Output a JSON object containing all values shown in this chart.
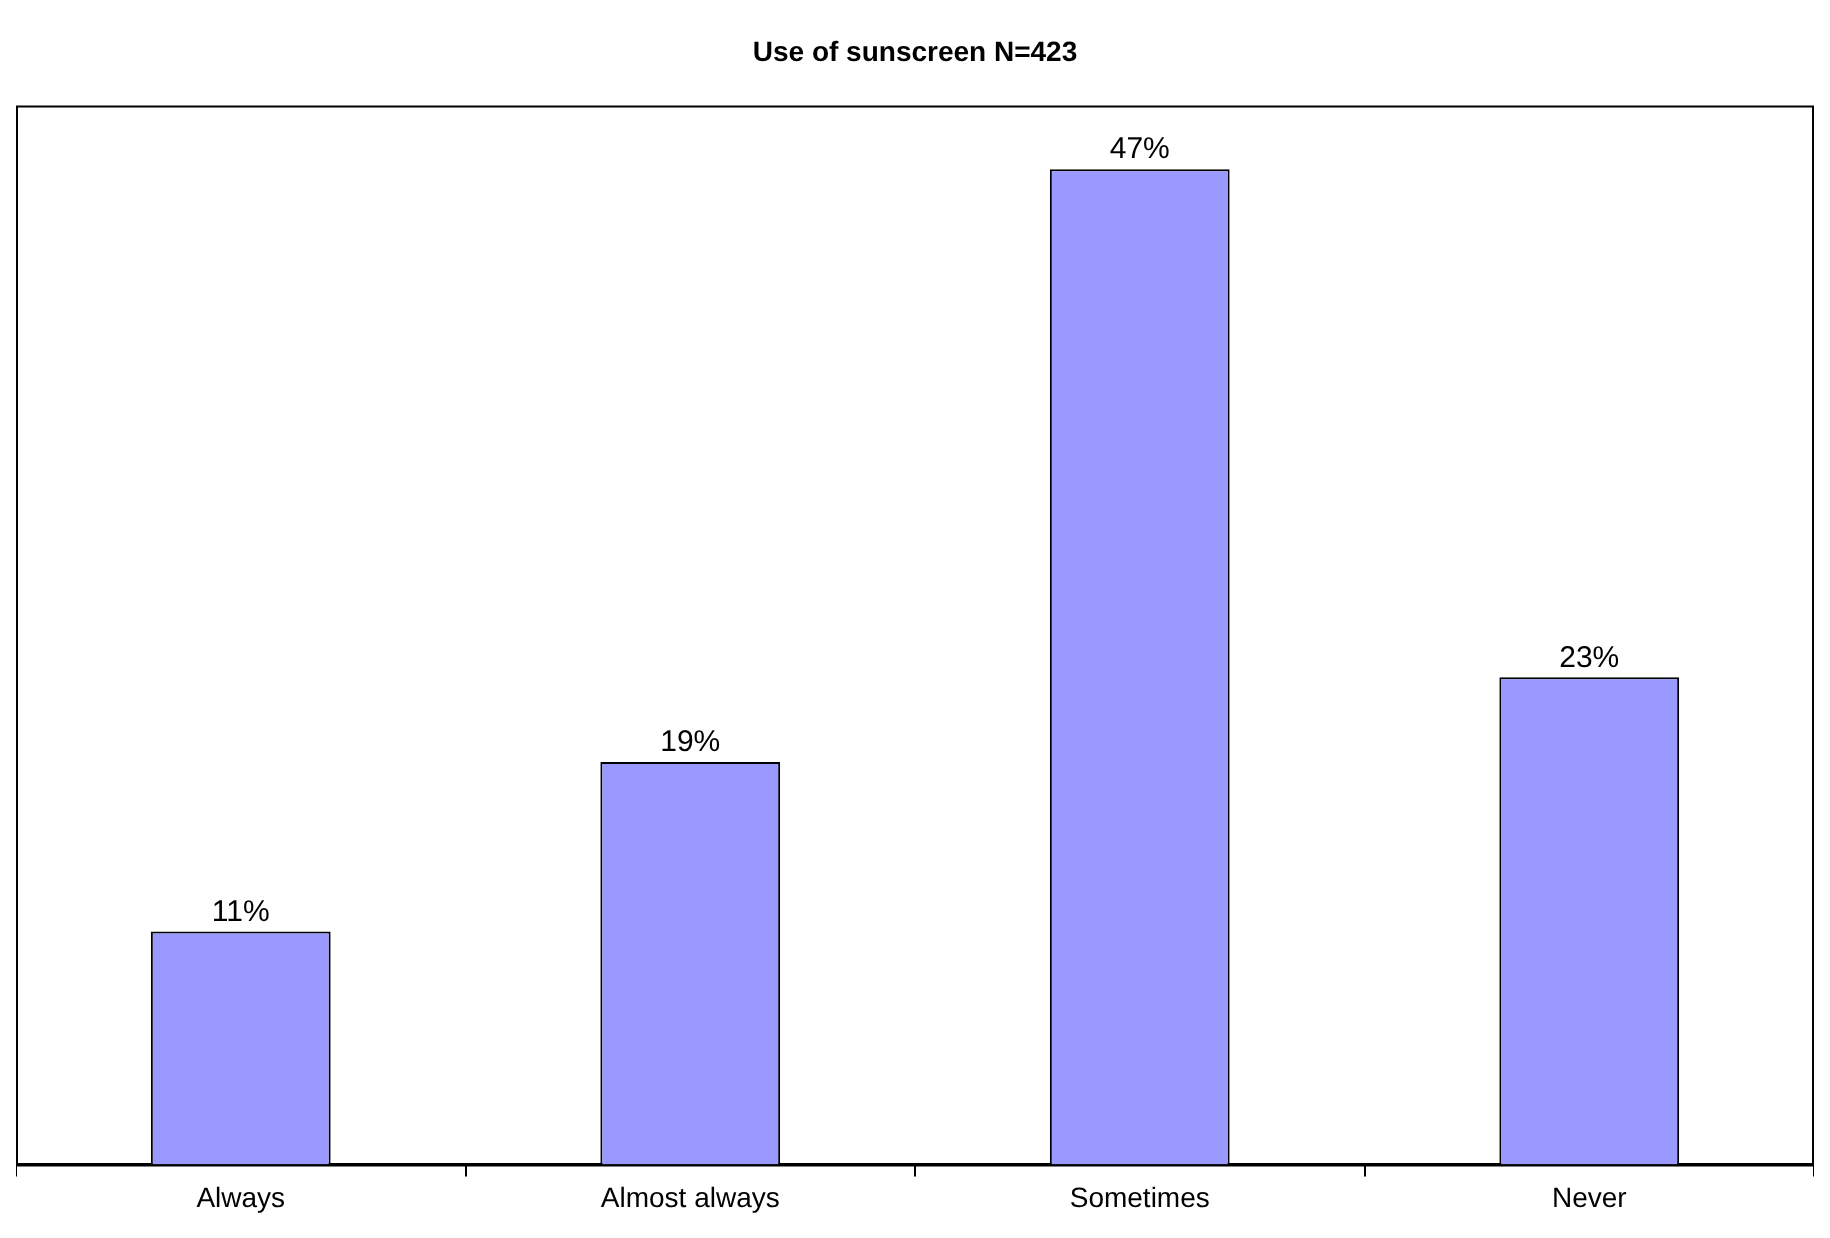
{
  "chart_data": {
    "type": "bar",
    "title": "Use of sunscreen N=423",
    "categories": [
      "Always",
      "Almost always",
      "Sometimes",
      "Never"
    ],
    "values": [
      11,
      19,
      47,
      23
    ],
    "color": "#9999ff",
    "value_labels": [
      "11%",
      "19%",
      "47%",
      "23%"
    ],
    "grid": false,
    "legend": false
  }
}
